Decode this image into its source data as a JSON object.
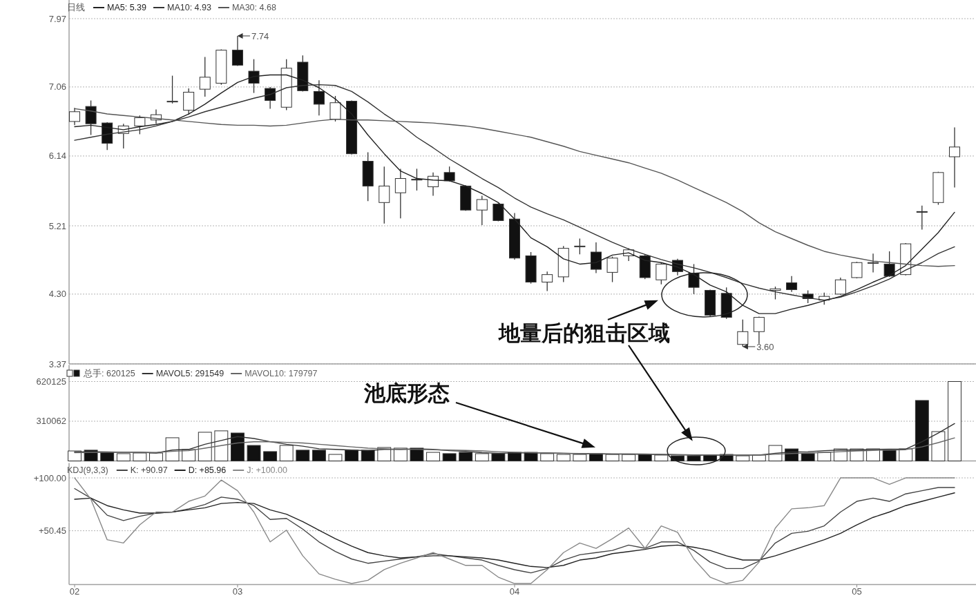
{
  "chart_data": [
    {
      "type": "candlestick",
      "title": "日线",
      "legend": "top left",
      "grid": "y",
      "tick_labels": "y",
      "categories": [
        null,
        null,
        null,
        null,
        null,
        null,
        null,
        null,
        null,
        null,
        null,
        null,
        null,
        null,
        null,
        null,
        null,
        null,
        null,
        null,
        null,
        null,
        null,
        null,
        null,
        null,
        null,
        null,
        null,
        null,
        null,
        null,
        null,
        null,
        null,
        null,
        null,
        null,
        null,
        null,
        null,
        null,
        null,
        null,
        null,
        null,
        null,
        null,
        null,
        null,
        null,
        null,
        null,
        null,
        null
      ],
      "ohlc": [
        [
          6.6,
          6.78,
          6.55,
          6.73
        ],
        [
          6.8,
          6.88,
          6.42,
          6.57
        ],
        [
          6.58,
          6.59,
          6.22,
          6.31
        ],
        [
          6.44,
          6.57,
          6.24,
          6.54
        ],
        [
          6.54,
          6.68,
          6.43,
          6.65
        ],
        [
          6.62,
          6.76,
          6.57,
          6.69
        ],
        [
          6.86,
          7.21,
          6.84,
          6.87
        ],
        [
          6.75,
          7.04,
          6.69,
          6.99
        ],
        [
          7.03,
          7.46,
          6.93,
          7.19
        ],
        [
          7.11,
          7.56,
          7.09,
          7.55
        ],
        [
          7.55,
          7.74,
          7.34,
          7.35
        ],
        [
          7.27,
          7.43,
          6.98,
          7.11
        ],
        [
          7.04,
          7.06,
          6.77,
          6.88
        ],
        [
          6.79,
          7.43,
          6.75,
          7.31
        ],
        [
          7.39,
          7.48,
          7.0,
          7.01
        ],
        [
          7.0,
          7.15,
          6.68,
          6.83
        ],
        [
          6.63,
          6.94,
          6.6,
          6.85
        ],
        [
          6.87,
          6.88,
          6.16,
          6.17
        ],
        [
          6.07,
          6.19,
          5.54,
          5.74
        ],
        [
          5.52,
          6.0,
          5.24,
          5.74
        ],
        [
          5.65,
          5.97,
          5.31,
          5.84
        ],
        [
          5.83,
          5.97,
          5.68,
          5.82
        ],
        [
          5.73,
          5.92,
          5.61,
          5.87
        ],
        [
          5.92,
          6.0,
          5.8,
          5.81
        ],
        [
          5.74,
          5.75,
          5.41,
          5.42
        ],
        [
          5.42,
          5.61,
          5.22,
          5.56
        ],
        [
          5.5,
          5.51,
          5.27,
          5.28
        ],
        [
          5.3,
          5.38,
          4.76,
          4.78
        ],
        [
          4.81,
          4.86,
          4.44,
          4.46
        ],
        [
          4.46,
          4.6,
          4.34,
          4.56
        ],
        [
          4.53,
          4.94,
          4.46,
          4.91
        ],
        [
          4.93,
          5.04,
          4.83,
          4.94
        ],
        [
          4.86,
          4.99,
          4.58,
          4.63
        ],
        [
          4.59,
          4.8,
          4.46,
          4.78
        ],
        [
          4.81,
          4.91,
          4.74,
          4.89
        ],
        [
          4.81,
          4.83,
          4.5,
          4.52
        ],
        [
          4.49,
          4.72,
          4.43,
          4.7
        ],
        [
          4.75,
          4.77,
          4.55,
          4.6
        ],
        [
          4.58,
          4.7,
          4.3,
          4.39
        ],
        [
          4.35,
          4.36,
          4.0,
          4.02
        ],
        [
          4.31,
          4.39,
          3.97,
          3.99
        ],
        [
          3.63,
          3.96,
          3.6,
          3.8
        ],
        [
          3.8,
          4.0,
          3.64,
          3.99
        ],
        [
          4.35,
          4.4,
          4.23,
          4.37
        ],
        [
          4.45,
          4.54,
          4.33,
          4.36
        ],
        [
          4.3,
          4.35,
          4.18,
          4.24
        ],
        [
          4.22,
          4.32,
          4.16,
          4.27
        ],
        [
          4.3,
          4.52,
          4.29,
          4.49
        ],
        [
          4.52,
          4.73,
          4.51,
          4.72
        ],
        [
          4.71,
          4.84,
          4.59,
          4.72
        ],
        [
          4.7,
          4.87,
          4.53,
          4.54
        ],
        [
          4.56,
          4.98,
          4.55,
          4.97
        ],
        [
          5.4,
          5.48,
          5.16,
          5.39
        ],
        [
          5.52,
          5.93,
          5.49,
          5.92
        ],
        [
          6.13,
          6.52,
          5.72,
          6.26
        ]
      ],
      "colors": [
        "#ffffff",
        "#111111",
        "#111111",
        "#ffffff",
        "#ffffff",
        "#ffffff",
        "#ffffff",
        "#ffffff",
        "#ffffff",
        "#ffffff",
        "#111111",
        "#111111",
        "#111111",
        "#ffffff",
        "#111111",
        "#111111",
        "#ffffff",
        "#111111",
        "#111111",
        "#ffffff",
        "#ffffff",
        "#111111",
        "#ffffff",
        "#111111",
        "#111111",
        "#ffffff",
        "#111111",
        "#111111",
        "#111111",
        "#ffffff",
        "#ffffff",
        "#ffffff",
        "#111111",
        "#ffffff",
        "#ffffff",
        "#111111",
        "#ffffff",
        "#111111",
        "#111111",
        "#111111",
        "#111111",
        "#ffffff",
        "#ffffff",
        "#ffffff",
        "#111111",
        "#111111",
        "#ffffff",
        "#ffffff",
        "#ffffff",
        "#ffffff",
        "#111111",
        "#ffffff",
        "#111111",
        "#ffffff",
        "#ffffff"
      ],
      "series": [
        {
          "name": "MA5: 5.39",
          "type": "line",
          "color": "#222222",
          "values": [
            6.53,
            6.55,
            6.52,
            6.49,
            6.53,
            6.56,
            6.6,
            6.7,
            6.83,
            6.98,
            7.12,
            7.2,
            7.22,
            7.22,
            7.15,
            7.05,
            6.9,
            6.7,
            6.42,
            6.17,
            5.94,
            5.84,
            5.82,
            5.81,
            5.74,
            5.64,
            5.52,
            5.3,
            5.05,
            4.93,
            4.77,
            4.7,
            4.72,
            4.82,
            4.85,
            4.75,
            4.72,
            4.66,
            4.56,
            4.42,
            4.33,
            4.15,
            4.04,
            4.04,
            4.1,
            4.15,
            4.21,
            4.27,
            4.36,
            4.46,
            4.55,
            4.68,
            4.9,
            5.12,
            5.39
          ]
        },
        {
          "name": "MA10: 4.93",
          "type": "line",
          "color": "#333333",
          "values": [
            6.35,
            6.39,
            6.43,
            6.46,
            6.49,
            6.54,
            6.6,
            6.66,
            6.73,
            6.79,
            6.85,
            6.91,
            6.96,
            7.05,
            7.08,
            7.09,
            7.08,
            7.0,
            6.86,
            6.7,
            6.56,
            6.39,
            6.25,
            6.1,
            5.97,
            5.84,
            5.72,
            5.58,
            5.46,
            5.37,
            5.29,
            5.19,
            5.09,
            4.99,
            4.9,
            4.83,
            4.76,
            4.7,
            4.65,
            4.59,
            4.52,
            4.44,
            4.38,
            4.33,
            4.29,
            4.25,
            4.22,
            4.26,
            4.33,
            4.41,
            4.5,
            4.62,
            4.72,
            4.84,
            4.93
          ]
        },
        {
          "name": "MA30: 4.68",
          "type": "line",
          "color": "#555555",
          "values": [
            6.77,
            6.74,
            6.7,
            6.68,
            6.66,
            6.64,
            6.62,
            6.6,
            6.58,
            6.56,
            6.55,
            6.55,
            6.54,
            6.55,
            6.58,
            6.61,
            6.63,
            6.62,
            6.62,
            6.61,
            6.6,
            6.59,
            6.58,
            6.56,
            6.54,
            6.51,
            6.47,
            6.43,
            6.39,
            6.33,
            6.27,
            6.2,
            6.15,
            6.1,
            6.05,
            5.98,
            5.91,
            5.82,
            5.72,
            5.62,
            5.52,
            5.4,
            5.25,
            5.13,
            5.04,
            4.95,
            4.87,
            4.82,
            4.78,
            4.74,
            4.72,
            4.7,
            4.68,
            4.67,
            4.68
          ]
        }
      ],
      "ylim": [
        3.37,
        7.97
      ],
      "yticks": [
        3.37,
        {
          "value": 4.3,
          "label": "4.30"
        },
        5.21,
        6.14,
        7.06,
        7.97
      ],
      "annotations": [
        "7.74",
        "3.60",
        "地量后的狙击区域"
      ]
    },
    {
      "type": "bar",
      "legend": "top left",
      "grid": "y",
      "tick_labels": "y",
      "categories": [
        null,
        null,
        null,
        null,
        null,
        null,
        null,
        null,
        null,
        null,
        null,
        null,
        null,
        null,
        null,
        null,
        null,
        null,
        null,
        null,
        null,
        null,
        null,
        null,
        null,
        null,
        null,
        null,
        null,
        null,
        null,
        null,
        null,
        null,
        null,
        null,
        null,
        null,
        null,
        null,
        null,
        null,
        null,
        null,
        null,
        null,
        null,
        null,
        null,
        null,
        null,
        null,
        null,
        null,
        null
      ],
      "series": [
        {
          "name": "总手: 620125",
          "type": "bar",
          "values": [
            78000,
            84000,
            67000,
            57000,
            62000,
            62000,
            181000,
            89000,
            224000,
            235000,
            218000,
            121000,
            73000,
            121000,
            84000,
            84000,
            51000,
            84000,
            84000,
            105000,
            100000,
            100000,
            67000,
            57000,
            67000,
            57000,
            57000,
            67000,
            67000,
            57000,
            51000,
            51000,
            57000,
            51000,
            51000,
            51000,
            46000,
            40000,
            40000,
            46000,
            51000,
            40000,
            46000,
            121000,
            94000,
            57000,
            67000,
            94000,
            94000,
            94000,
            84000,
            94000,
            472000,
            229000,
            620125
          ],
          "colors": [
            "#ffffff",
            "#111111",
            "#111111",
            "#ffffff",
            "#ffffff",
            "#ffffff",
            "#ffffff",
            "#ffffff",
            "#ffffff",
            "#ffffff",
            "#111111",
            "#111111",
            "#111111",
            "#ffffff",
            "#111111",
            "#111111",
            "#ffffff",
            "#111111",
            "#111111",
            "#ffffff",
            "#ffffff",
            "#111111",
            "#ffffff",
            "#111111",
            "#111111",
            "#ffffff",
            "#111111",
            "#111111",
            "#111111",
            "#ffffff",
            "#ffffff",
            "#ffffff",
            "#111111",
            "#ffffff",
            "#ffffff",
            "#111111",
            "#ffffff",
            "#111111",
            "#111111",
            "#111111",
            "#111111",
            "#ffffff",
            "#ffffff",
            "#ffffff",
            "#111111",
            "#111111",
            "#ffffff",
            "#ffffff",
            "#ffffff",
            "#ffffff",
            "#111111",
            "#ffffff",
            "#111111",
            "#ffffff",
            "#ffffff"
          ]
        },
        {
          "name": "MAVOL5: 291549",
          "type": "line",
          "color": "#333333",
          "values": [
            70000,
            72000,
            70000,
            68000,
            68000,
            62000,
            85000,
            90000,
            130000,
            160000,
            190000,
            175000,
            150000,
            130000,
            115000,
            95000,
            90000,
            85000,
            80000,
            90000,
            90000,
            95000,
            90000,
            80000,
            75000,
            65000,
            60000,
            62000,
            63000,
            62000,
            60000,
            57000,
            55000,
            53000,
            52000,
            52000,
            50000,
            48000,
            46000,
            44000,
            45000,
            45000,
            46000,
            60000,
            70000,
            72000,
            80000,
            85000,
            85000,
            90000,
            92000,
            92000,
            150000,
            218000,
            291549
          ]
        },
        {
          "name": "MAVOL10: 179797",
          "type": "line",
          "color": "#666666",
          "values": [
            65000,
            66000,
            67000,
            67000,
            67000,
            66000,
            75000,
            80000,
            100000,
            120000,
            140000,
            150000,
            150000,
            145000,
            140000,
            130000,
            120000,
            110000,
            100000,
            95000,
            90000,
            90000,
            88000,
            85000,
            82000,
            78000,
            72000,
            68000,
            65000,
            62000,
            60000,
            58000,
            57000,
            56000,
            55000,
            54000,
            52000,
            50000,
            48000,
            47000,
            46000,
            46000,
            46000,
            52000,
            58000,
            62000,
            66000,
            72000,
            78000,
            82000,
            85000,
            88000,
            110000,
            143000,
            179797
          ]
        }
      ],
      "ylim": [
        0,
        750000
      ],
      "yticks": [
        310062,
        620125
      ],
      "annotations": [
        "池底形态"
      ]
    },
    {
      "type": "line",
      "title": "KDJ(9,3,3)",
      "legend": "top left",
      "grid": "y",
      "categories": [
        "02",
        null,
        null,
        null,
        null,
        null,
        null,
        null,
        null,
        null,
        "03",
        null,
        null,
        null,
        null,
        null,
        null,
        null,
        null,
        null,
        null,
        null,
        null,
        null,
        null,
        null,
        null,
        "04",
        null,
        null,
        null,
        null,
        null,
        null,
        null,
        null,
        null,
        null,
        null,
        null,
        null,
        null,
        null,
        null,
        null,
        null,
        null,
        null,
        "05",
        null,
        null,
        null,
        null,
        null,
        null
      ],
      "series": [
        {
          "name": "K: +90.97",
          "color": "#444444",
          "values": [
            90,
            81,
            65,
            60,
            64,
            67,
            68,
            71,
            75,
            82,
            80,
            74,
            61,
            62,
            52,
            40,
            31,
            24,
            20,
            22,
            24,
            26,
            29,
            27,
            25,
            23,
            18,
            14,
            11,
            15,
            23,
            28,
            30,
            32,
            37,
            34,
            40,
            40,
            32,
            21,
            15,
            15,
            22,
            39,
            48,
            50,
            55,
            68,
            78,
            81,
            78,
            85,
            88,
            91,
            90.97
          ]
        },
        {
          "name": "D: +85.96",
          "color": "#222222",
          "values": [
            80,
            81,
            74,
            70,
            67,
            67,
            68,
            70,
            72,
            76,
            77,
            76,
            70,
            66,
            59,
            51,
            43,
            36,
            30,
            27,
            25,
            26,
            27,
            27,
            26,
            25,
            23,
            20,
            17,
            16,
            18,
            23,
            25,
            29,
            31,
            33,
            36,
            37,
            35,
            32,
            27,
            23,
            23,
            27,
            32,
            37,
            42,
            48,
            56,
            63,
            68,
            74,
            78,
            82,
            85.96
          ]
        },
        {
          "name": "J: +100.00",
          "color": "#888888",
          "values": [
            100,
            80,
            42,
            39,
            56,
            68,
            68,
            78,
            83,
            98,
            88,
            68,
            40,
            51,
            27,
            10,
            5,
            1,
            4,
            14,
            20,
            25,
            30,
            24,
            18,
            18,
            7,
            1,
            1,
            14,
            30,
            39,
            34,
            43,
            53,
            34,
            55,
            49,
            24,
            7,
            1,
            4,
            21,
            53,
            71,
            72,
            74,
            100,
            100,
            100,
            94,
            100,
            100,
            100,
            100
          ]
        }
      ],
      "ylim": [
        0,
        114
      ],
      "yticks": [
        {
          "value": 100,
          "label": "+100.00"
        },
        {
          "value": 50.45,
          "label": "+50.45"
        }
      ]
    }
  ]
}
